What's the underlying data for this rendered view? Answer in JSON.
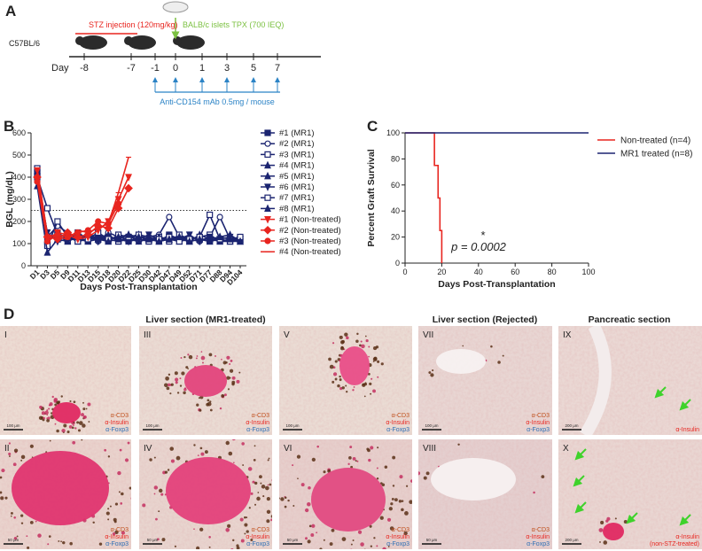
{
  "panel_labels": {
    "a": "A",
    "b": "B",
    "c": "C",
    "d": "D"
  },
  "timeline": {
    "strain": "C57BL/6",
    "stz": "STZ injection (120mg/kg)",
    "transplant": "BALB/c islets TPX (700 IEQ)",
    "day_label": "Day",
    "days": [
      "-8",
      "-7",
      "-1",
      "0",
      "1",
      "3",
      "5",
      "7"
    ],
    "antibody": "Anti-CD154 mAb 0.5mg / mouse"
  },
  "chart_data": [
    {
      "type": "line",
      "x_label": "Days Post-Transplantation",
      "y_label": "BGL (mg/dL)",
      "categories": [
        "D1",
        "D3",
        "D5",
        "D9",
        "D11",
        "D13",
        "D15",
        "D18",
        "D20",
        "D22",
        "D25",
        "D30",
        "D42",
        "D47",
        "D49",
        "D52",
        "D71",
        "D77",
        "D88",
        "D94",
        "D104"
      ],
      "ylim": [
        0,
        600
      ],
      "yticks": [
        0,
        100,
        200,
        300,
        400,
        500,
        600
      ],
      "reference_line": 250,
      "series": [
        {
          "name": "#1 (MR1)",
          "color": "#1b2470",
          "marker": "square",
          "filled": true,
          "values": [
            420,
            110,
            150,
            120,
            130,
            110,
            120,
            130,
            120,
            110,
            130,
            120,
            110,
            140,
            120,
            110,
            120,
            110,
            120,
            110,
            110
          ]
        },
        {
          "name": "#2 (MR1)",
          "color": "#1b2470",
          "marker": "circle",
          "filled": false,
          "values": [
            380,
            130,
            180,
            150,
            120,
            140,
            110,
            150,
            130,
            120,
            110,
            130,
            140,
            220,
            130,
            120,
            110,
            130,
            220,
            120,
            130
          ]
        },
        {
          "name": "#3 (MR1)",
          "color": "#1b2470",
          "marker": "square",
          "filled": false,
          "values": [
            400,
            260,
            140,
            110,
            150,
            120,
            130,
            110,
            140,
            130,
            120,
            110,
            130,
            110,
            140,
            120,
            130,
            140,
            110,
            120,
            120
          ]
        },
        {
          "name": "#4 (MR1)",
          "color": "#1b2470",
          "marker": "triangle-up",
          "filled": true,
          "values": [
            430,
            140,
            120,
            130,
            110,
            150,
            120,
            140,
            110,
            120,
            140,
            130,
            110,
            120,
            110,
            130,
            120,
            110,
            130,
            140,
            110
          ]
        },
        {
          "name": "#5 (MR1)",
          "color": "#1b2470",
          "marker": "triangle-up",
          "filled": true,
          "values": [
            410,
            120,
            130,
            140,
            120,
            110,
            140,
            120,
            130,
            140,
            110,
            120,
            130,
            120,
            130,
            110,
            140,
            120,
            110,
            110,
            120
          ]
        },
        {
          "name": "#6 (MR1)",
          "color": "#1b2470",
          "marker": "triangle-down",
          "filled": true,
          "values": [
            390,
            150,
            110,
            120,
            140,
            130,
            110,
            130,
            120,
            110,
            120,
            140,
            120,
            130,
            120,
            140,
            110,
            130,
            120,
            130,
            120
          ]
        },
        {
          "name": "#7 (MR1)",
          "color": "#1b2470",
          "marker": "square",
          "filled": false,
          "values": [
            440,
            90,
            200,
            130,
            110,
            120,
            150,
            120,
            110,
            130,
            140,
            110,
            120,
            130,
            110,
            120,
            130,
            230,
            120,
            110,
            130
          ]
        },
        {
          "name": "#8 (MR1)",
          "color": "#1b2470",
          "marker": "triangle-up",
          "filled": true,
          "values": [
            360,
            60,
            120,
            110,
            130,
            140,
            120,
            110,
            120,
            140,
            130,
            120,
            110,
            120,
            130,
            110,
            120,
            120,
            130,
            120,
            110
          ]
        },
        {
          "name": "#1 (Non-treated)",
          "color": "#e8251f",
          "marker": "triangle-down",
          "filled": true,
          "values": [
            430,
            120,
            150,
            140,
            120,
            130,
            160,
            200,
            300,
            400,
            null,
            null,
            null,
            null,
            null,
            null,
            null,
            null,
            null,
            null,
            null
          ]
        },
        {
          "name": "#2 (Non-treated)",
          "color": "#e8251f",
          "marker": "diamond",
          "filled": true,
          "values": [
            400,
            130,
            120,
            150,
            130,
            140,
            180,
            170,
            260,
            350,
            null,
            null,
            null,
            null,
            null,
            null,
            null,
            null,
            null,
            null,
            null
          ]
        },
        {
          "name": "#3 (Non-treated)",
          "color": "#e8251f",
          "marker": "circle",
          "filled": true,
          "values": [
            380,
            110,
            140,
            130,
            150,
            160,
            200,
            190,
            280,
            null,
            null,
            null,
            null,
            null,
            null,
            null,
            null,
            null,
            null,
            null,
            null
          ]
        },
        {
          "name": "#4 (Non-treated)",
          "color": "#e8251f",
          "marker": "none",
          "filled": true,
          "values": [
            440,
            140,
            130,
            120,
            160,
            150,
            170,
            190,
            330,
            490,
            null,
            null,
            null,
            null,
            null,
            null,
            null,
            null,
            null,
            null,
            null
          ]
        }
      ]
    },
    {
      "type": "step",
      "x_label": "Days Post-Transplantation",
      "y_label": "Percent Graft Survival",
      "xlim": [
        0,
        100
      ],
      "xticks": [
        0,
        20,
        40,
        60,
        80,
        100
      ],
      "ylim": [
        0,
        100
      ],
      "yticks": [
        0,
        20,
        40,
        60,
        80,
        100
      ],
      "series": [
        {
          "name": "Non-treated (n=4)",
          "color": "#e8251f",
          "x": [
            0,
            16,
            18,
            19,
            20
          ],
          "values": [
            100,
            75,
            50,
            25,
            0
          ]
        },
        {
          "name": "MR1 treated (n=8)",
          "color": "#1b2470",
          "x": [
            0,
            100
          ],
          "values": [
            100,
            100
          ]
        }
      ],
      "annotations": [
        "*",
        "p = 0.0002"
      ]
    }
  ],
  "histology": {
    "titles": [
      "Liver section (MR1-treated)",
      "Liver section (Rejected)",
      "Pancreatic section"
    ],
    "panels": [
      {
        "label": "I",
        "scale": "100 μm",
        "stains": [
          {
            "text": "α-CD3",
            "color": "#c0501e"
          },
          {
            "text": "α-Insulin",
            "color": "#e8251f"
          },
          {
            "text": "α-Foxp3",
            "color": "#2e6fb5"
          }
        ]
      },
      {
        "label": "II",
        "scale": "50 μm",
        "stains": [
          {
            "text": "α-CD3",
            "color": "#c0501e"
          },
          {
            "text": "α-Insulin",
            "color": "#e8251f"
          },
          {
            "text": "α-Foxp3",
            "color": "#2e6fb5"
          }
        ]
      },
      {
        "label": "III",
        "scale": "100 μm",
        "stains": [
          {
            "text": "α-CD3",
            "color": "#c0501e"
          },
          {
            "text": "α-Insulin",
            "color": "#e8251f"
          },
          {
            "text": "α-Foxp3",
            "color": "#2e6fb5"
          }
        ]
      },
      {
        "label": "IV",
        "scale": "50 μm",
        "stains": [
          {
            "text": "α-CD3",
            "color": "#c0501e"
          },
          {
            "text": "α-Insulin",
            "color": "#e8251f"
          },
          {
            "text": "α-Foxp3",
            "color": "#2e6fb5"
          }
        ]
      },
      {
        "label": "V",
        "scale": "100 μm",
        "stains": [
          {
            "text": "α-CD3",
            "color": "#c0501e"
          },
          {
            "text": "α-Insulin",
            "color": "#e8251f"
          },
          {
            "text": "α-Foxp3",
            "color": "#2e6fb5"
          }
        ]
      },
      {
        "label": "VI",
        "scale": "50 μm",
        "stains": [
          {
            "text": "α-CD3",
            "color": "#c0501e"
          },
          {
            "text": "α-Insulin",
            "color": "#e8251f"
          },
          {
            "text": "α-Foxp3",
            "color": "#2e6fb5"
          }
        ]
      },
      {
        "label": "VII",
        "scale": "100 μm",
        "stains": [
          {
            "text": "α-CD3",
            "color": "#c0501e"
          },
          {
            "text": "α-Insulin",
            "color": "#e8251f"
          },
          {
            "text": "α-Foxp3",
            "color": "#2e6fb5"
          }
        ]
      },
      {
        "label": "VIII",
        "scale": "50 μm",
        "stains": [
          {
            "text": "α-CD3",
            "color": "#c0501e"
          },
          {
            "text": "α-Insulin",
            "color": "#e8251f"
          },
          {
            "text": "α-Foxp3",
            "color": "#2e6fb5"
          }
        ]
      },
      {
        "label": "IX",
        "scale": "200 μm",
        "stains": [
          {
            "text": "α-Insulin",
            "color": "#e8251f"
          }
        ]
      },
      {
        "label": "X",
        "scale": "200 μm",
        "stains": [
          {
            "text": "α-Insulin",
            "color": "#e8251f"
          },
          {
            "text": "(non-STZ-treated)",
            "color": "#e8251f"
          }
        ]
      }
    ]
  }
}
